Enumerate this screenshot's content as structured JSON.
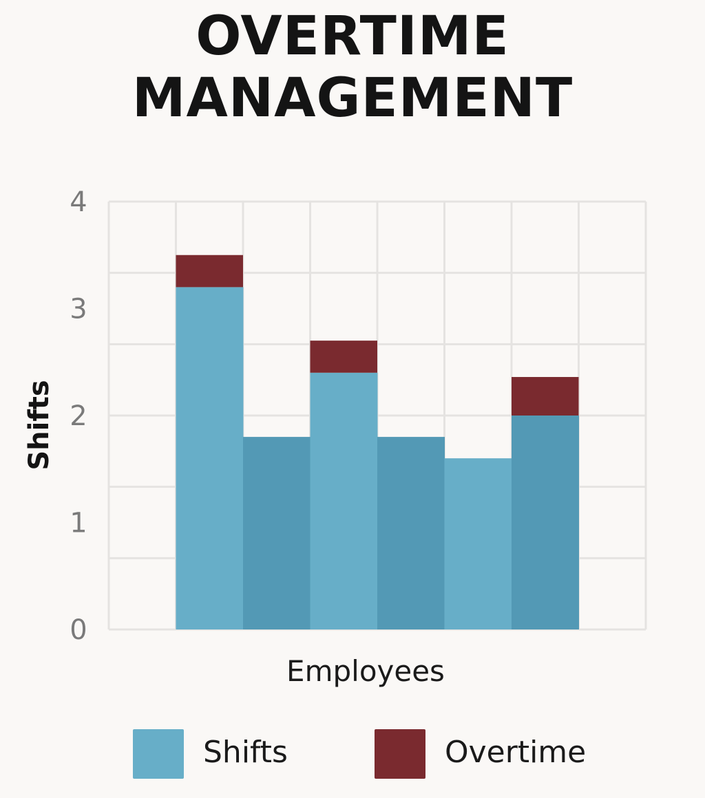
{
  "chart_data": {
    "type": "bar",
    "stacked": true,
    "title_lines": [
      "OVERTIME",
      "MANAGEMENT"
    ],
    "xlabel": "Employees",
    "ylabel": "Shifts",
    "y_tick_labels": [
      "0",
      "1",
      "2",
      "3",
      "4"
    ],
    "ylim": [
      0,
      4
    ],
    "grid": true,
    "legend_position": "bottom",
    "categories": [
      "",
      "",
      "",
      "",
      "",
      ""
    ],
    "series": [
      {
        "name": "Shifts",
        "color": "#67aec8",
        "alt_color": "#5399b5",
        "values": [
          3.2,
          1.8,
          2.4,
          1.8,
          1.6,
          2.0
        ]
      },
      {
        "name": "Overtime",
        "color": "#7a2a2f",
        "values": [
          0.3,
          0,
          0.3,
          0,
          0,
          0.36
        ]
      }
    ]
  },
  "colors": {
    "background": "#faf8f6",
    "grid": "#e5e3e1",
    "tick_text": "#7a7a7a",
    "label_text": "#1a1a1a"
  }
}
